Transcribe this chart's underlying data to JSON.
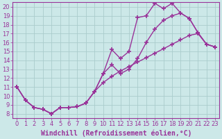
{
  "xlabel": "Windchill (Refroidissement éolien,°C)",
  "bg_color": "#cce8e8",
  "line_color": "#993399",
  "grid_color": "#aacccc",
  "xlim": [
    -0.5,
    23.5
  ],
  "ylim": [
    7.5,
    20.5
  ],
  "xticks": [
    0,
    1,
    2,
    3,
    4,
    5,
    6,
    7,
    8,
    9,
    10,
    11,
    12,
    13,
    14,
    15,
    16,
    17,
    18,
    19,
    20,
    21,
    22,
    23
  ],
  "yticks": [
    8,
    9,
    10,
    11,
    12,
    13,
    14,
    15,
    16,
    17,
    18,
    19,
    20
  ],
  "line1_x": [
    0,
    1,
    2,
    3,
    4,
    5,
    6,
    7,
    8,
    9,
    10,
    11,
    12,
    13,
    14,
    15,
    16,
    17,
    18,
    19,
    20,
    21,
    22,
    23
  ],
  "line1_y": [
    11.0,
    9.5,
    8.7,
    8.5,
    8.0,
    8.7,
    8.7,
    8.8,
    9.2,
    10.5,
    12.5,
    15.2,
    14.2,
    15.0,
    18.8,
    19.0,
    20.4,
    19.8,
    20.4,
    19.3,
    18.7,
    17.1,
    15.8,
    15.5
  ],
  "line2_x": [
    0,
    1,
    2,
    3,
    4,
    5,
    6,
    7,
    8,
    9,
    10,
    11,
    12,
    13,
    14,
    15,
    16,
    17,
    18,
    19,
    20,
    21,
    22,
    23
  ],
  "line2_y": [
    11.0,
    9.5,
    8.7,
    8.5,
    8.0,
    8.7,
    8.7,
    8.8,
    9.2,
    10.5,
    12.5,
    13.5,
    12.5,
    13.0,
    14.2,
    16.0,
    17.5,
    18.5,
    19.0,
    19.3,
    18.7,
    17.1,
    15.8,
    15.5
  ],
  "line3_x": [
    0,
    1,
    2,
    3,
    4,
    5,
    6,
    7,
    8,
    9,
    10,
    11,
    12,
    13,
    14,
    15,
    16,
    17,
    18,
    19,
    20,
    21,
    22,
    23
  ],
  "line3_y": [
    11.0,
    9.5,
    8.7,
    8.5,
    8.0,
    8.7,
    8.7,
    8.8,
    9.2,
    10.5,
    11.5,
    12.2,
    12.8,
    13.3,
    13.8,
    14.3,
    14.8,
    15.3,
    15.8,
    16.3,
    16.8,
    17.0,
    15.8,
    15.5
  ],
  "marker": "+",
  "markersize": 4.5,
  "linewidth": 1.0,
  "tick_fontsize": 6.0,
  "xlabel_fontsize": 7.0
}
